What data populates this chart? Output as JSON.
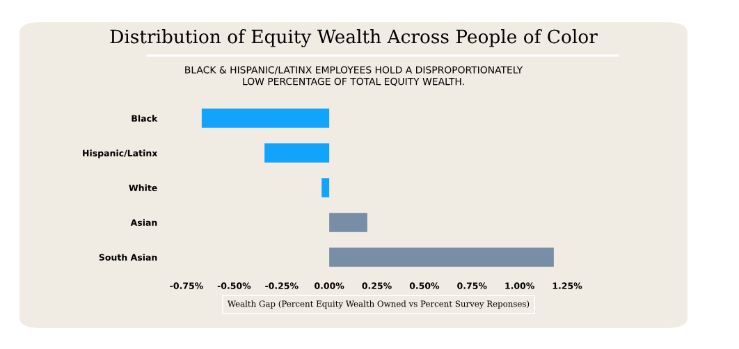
{
  "chart_data": {
    "type": "bar",
    "orientation": "horizontal",
    "title": "Distribution of Equity Wealth Across People of Color",
    "subtitle": "BLACK & HISPANIC/LATINX EMPLOYEES HOLD A DISPROPORTIONATELY\nLOW PERCENTAGE OF TOTAL EQUITY WEALTH.",
    "xlabel": "Wealth Gap (Percent Equity Wealth Owned vs Percent Survey Reponses)",
    "categories": [
      "Black",
      "Hispanic/Latinx",
      "White",
      "Asian",
      "South Asian"
    ],
    "values": [
      -0.67,
      -0.34,
      -0.04,
      0.2,
      1.18
    ],
    "colors": [
      "#12a4fb",
      "#12a4fb",
      "#12a4fb",
      "#778ea6",
      "#778ea6"
    ],
    "xlim": [
      -0.75,
      1.25
    ],
    "xticks": [
      {
        "value": -0.75,
        "label": "-0.75%"
      },
      {
        "value": -0.5,
        "label": "-0.50%"
      },
      {
        "value": -0.25,
        "label": "-0.25%"
      },
      {
        "value": 0,
        "label": "0.00%"
      },
      {
        "value": 0.25,
        "label": "0.25%"
      },
      {
        "value": 0.5,
        "label": "0.50%"
      },
      {
        "value": 0.75,
        "label": "0.75%"
      },
      {
        "value": 1.0,
        "label": "1.00%"
      },
      {
        "value": 1.25,
        "label": "1.25%"
      }
    ],
    "grid": false
  }
}
